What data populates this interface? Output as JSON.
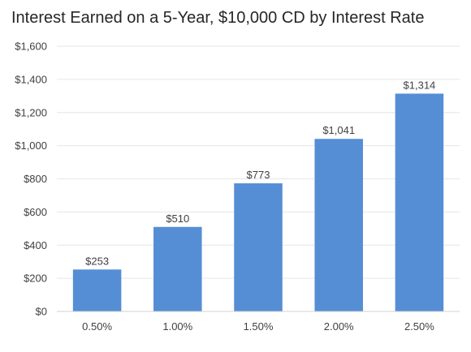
{
  "chart_data": {
    "type": "bar",
    "title": "Interest Earned on a 5-Year, $10,000 CD by Interest Rate",
    "categories": [
      "0.50%",
      "1.00%",
      "1.50%",
      "2.00%",
      "2.50%"
    ],
    "values": [
      253,
      510,
      773,
      1041,
      1314
    ],
    "data_labels": [
      "$253",
      "$510",
      "$773",
      "$1,041",
      "$1,314"
    ],
    "xlabel": "",
    "ylabel": "",
    "ylim": [
      0,
      1600
    ],
    "y_ticks": [
      0,
      200,
      400,
      600,
      800,
      1000,
      1200,
      1400,
      1600
    ],
    "y_tick_labels": [
      "$0",
      "$200",
      "$400",
      "$600",
      "$800",
      "$1,000",
      "$1,200",
      "$1,400",
      "$1,600"
    ],
    "grid": true,
    "legend": "none",
    "bar_color": "#558ed5"
  }
}
